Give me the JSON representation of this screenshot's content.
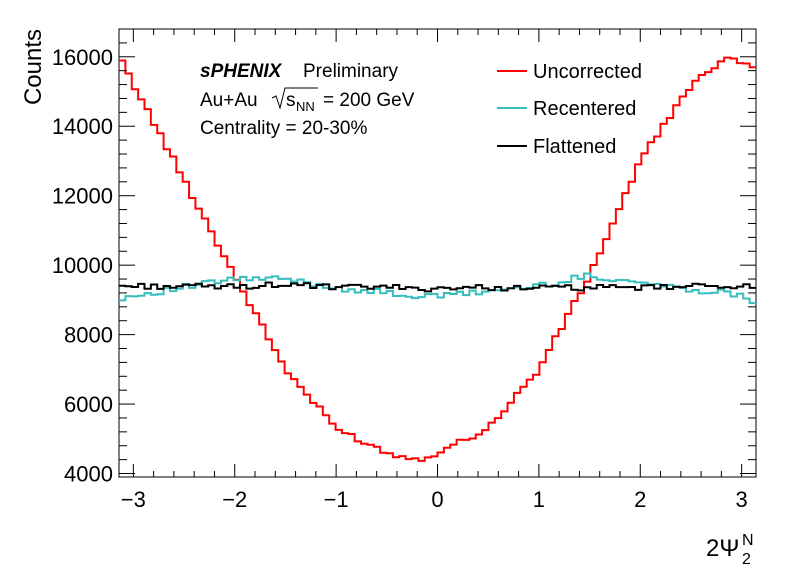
{
  "chart_data": {
    "type": "line",
    "title": "",
    "xlabel": "2Ψ",
    "xlabel_sup": "N",
    "xlabel_sub": "2",
    "ylabel": "Counts",
    "xlim": [
      -3.1416,
      3.1416
    ],
    "ylim": [
      3900,
      16800
    ],
    "x_ticks": [
      -3,
      -2,
      -1,
      0,
      1,
      2,
      3
    ],
    "x_tick_labels": [
      "−3",
      "−2",
      "−1",
      "0",
      "1",
      "2",
      "3"
    ],
    "y_ticks": [
      4000,
      6000,
      8000,
      10000,
      12000,
      14000,
      16000
    ],
    "y_tick_labels": [
      "4000",
      "6000",
      "8000",
      "10000",
      "12000",
      "14000",
      "16000"
    ],
    "grid": false,
    "legend_position": "top-right",
    "annotations": {
      "experiment": "sPHENIX",
      "status": "Preliminary",
      "system": "Au+Au",
      "energy_sym": "s",
      "energy_sub": "NN",
      "energy_val": "= 200 GeV",
      "centrality": "Centrality = 20-30%"
    },
    "x_anchor": [
      -3.1416,
      -2.0,
      -1.5,
      -1.0,
      -0.5,
      -0.2,
      0.0,
      0.5,
      1.0,
      1.5,
      2.0,
      2.5,
      2.9,
      3.1416
    ],
    "series": [
      {
        "name": "Uncorrected",
        "color": "#ff0000",
        "values": [
          16000,
          9700,
          7000,
          5300,
          4600,
          4400,
          4600,
          5300,
          7000,
          9700,
          13000,
          15200,
          16000,
          15700
        ]
      },
      {
        "name": "Recentered",
        "color": "#36bdbd",
        "values": [
          9050,
          9600,
          9600,
          9350,
          9200,
          9100,
          9100,
          9250,
          9400,
          9700,
          9500,
          9300,
          9200,
          8950
        ]
      },
      {
        "name": "Flattened",
        "color": "#000000",
        "values": [
          9400,
          9380,
          9450,
          9350,
          9380,
          9300,
          9350,
          9350,
          9350,
          9350,
          9350,
          9380,
          9420,
          9350
        ]
      }
    ],
    "bins": 100
  }
}
